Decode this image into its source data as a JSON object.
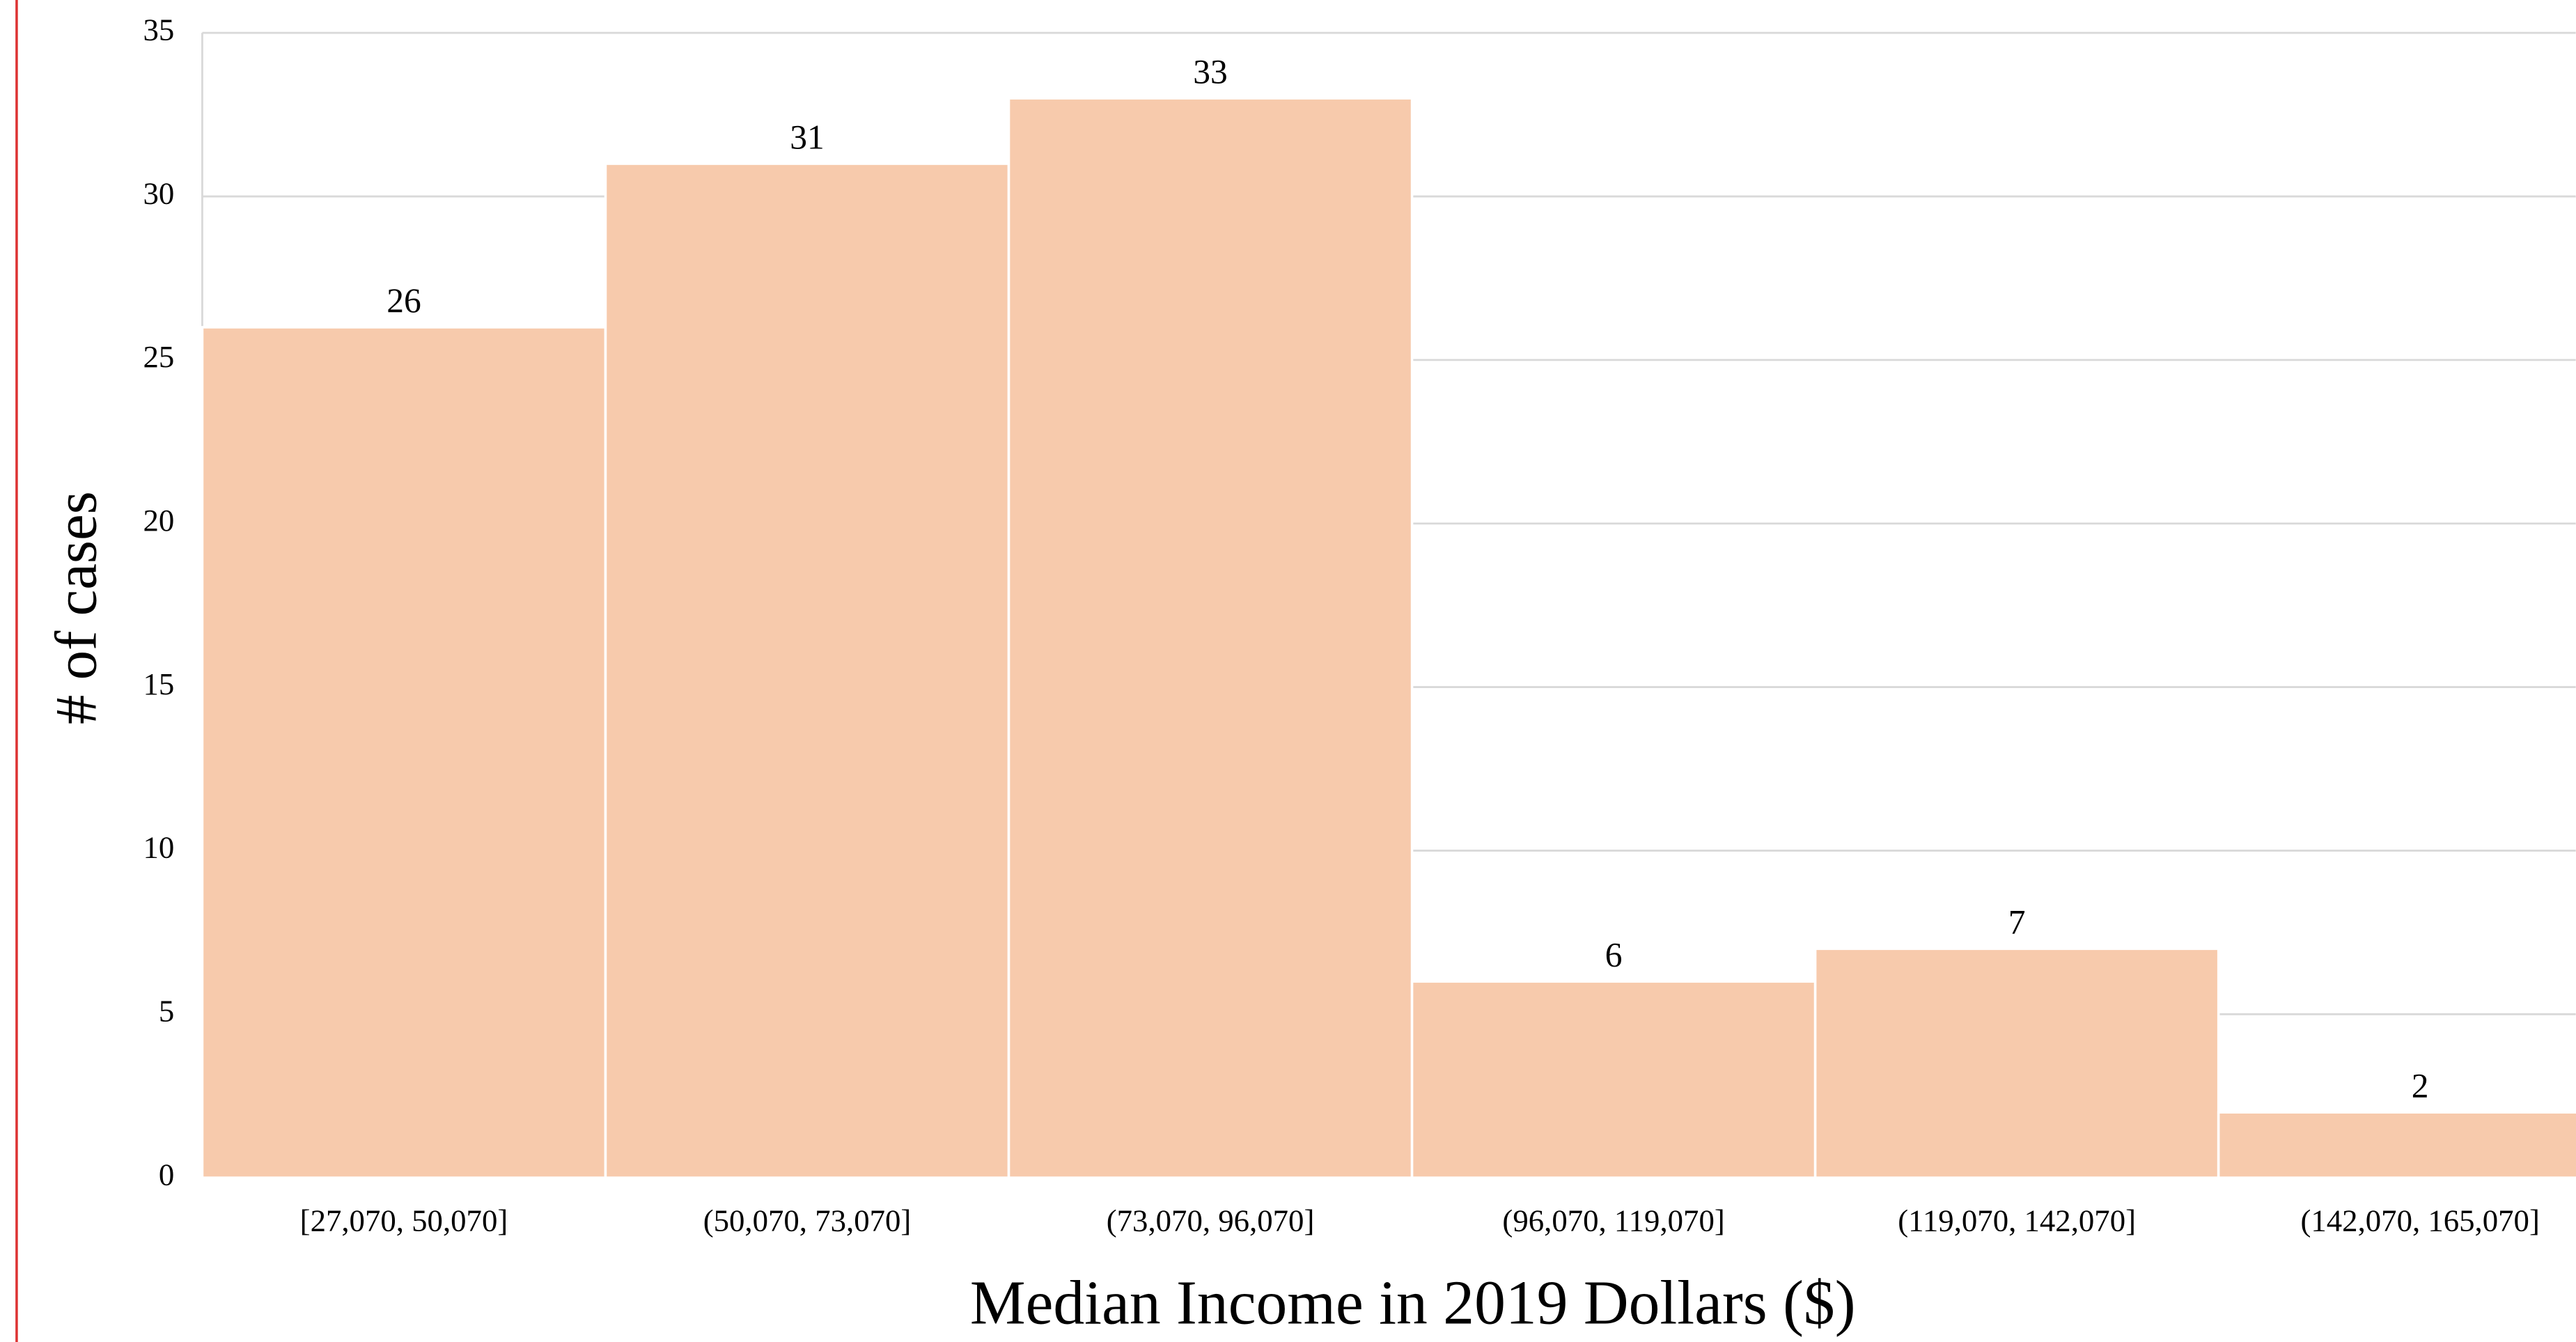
{
  "chart_data": {
    "type": "bar",
    "x_label": "Median Income in 2019 Dollars ($)",
    "y_label": "# of cases",
    "categories": [
      "[27,070, 50,070]",
      "(50,070, 73,070]",
      "(73,070, 96,070]",
      "(96,070, 119,070]",
      "(119,070, 142,070]",
      "(142,070, 165,070]"
    ],
    "values": [
      26,
      31,
      33,
      6,
      7,
      2
    ],
    "color": "#f7caac",
    "ylim": [
      0,
      35
    ],
    "yticks": [
      0,
      5,
      10,
      15,
      20,
      25,
      30,
      35
    ],
    "grid": true
  }
}
